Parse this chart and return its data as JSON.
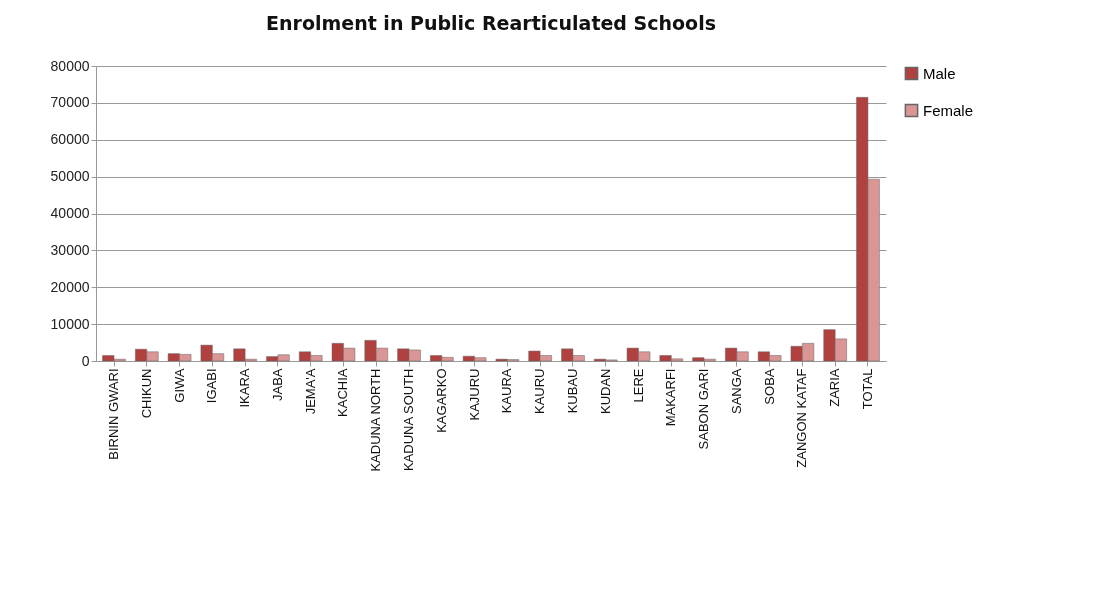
{
  "chart_data": {
    "type": "bar",
    "title": "Enrolment in Public Rearticulated Schools",
    "categories": [
      "BIRNIN GWARI",
      "CHIKUN",
      "GIWA",
      "IGABI",
      "IKARA",
      "JABA",
      "JEMA'A",
      "KACHIA",
      "KADUNA NORTH",
      "KADUNA SOUTH",
      "KAGARKO",
      "KAJURU",
      "KAURA",
      "KAURU",
      "KUBAU",
      "KUDAN",
      "LERE",
      "MAKARFI",
      "SABON GARI",
      "SANGA",
      "SOBA",
      "ZANGON KATAF",
      "ZARIA",
      "TOTAL"
    ],
    "series": [
      {
        "name": "Male",
        "color": "#b0413e",
        "values": [
          1500,
          3200,
          2000,
          4300,
          3300,
          1200,
          2500,
          4800,
          5600,
          3300,
          1500,
          1300,
          500,
          2700,
          3300,
          500,
          3500,
          1500,
          900,
          3500,
          2500,
          4000,
          8500,
          71500
        ]
      },
      {
        "name": "Female",
        "color": "#d99694",
        "values": [
          500,
          2500,
          1800,
          2000,
          500,
          1700,
          1500,
          3500,
          3500,
          3000,
          1000,
          900,
          400,
          1500,
          1500,
          300,
          2500,
          600,
          500,
          2500,
          1500,
          4800,
          6000,
          49300
        ]
      }
    ],
    "ylim": [
      0,
      80000
    ],
    "yticks": [
      0,
      10000,
      20000,
      30000,
      40000,
      50000,
      60000,
      70000,
      80000
    ],
    "grid": "y",
    "legend": "right"
  }
}
